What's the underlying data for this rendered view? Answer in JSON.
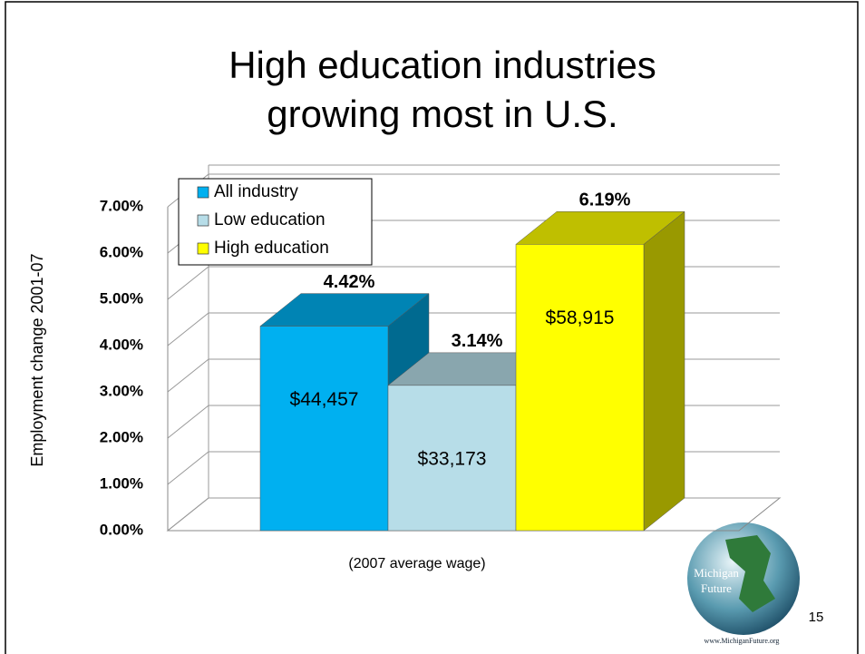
{
  "chart_data": {
    "type": "bar3d",
    "title": [
      "High education industries",
      "growing most in U.S."
    ],
    "y_label": "Employment change 2001-07",
    "x_label": "(2007 average wage)",
    "categories": [
      null
    ],
    "series": [
      {
        "name": "All industry",
        "color": "#00b0f0",
        "values": [
          4.42
        ],
        "value_labels": [
          "4.42%"
        ],
        "wage_labels": [
          "$44,457"
        ]
      },
      {
        "name": "Low education",
        "color": "#b7dde8",
        "values": [
          3.14
        ],
        "value_labels": [
          "3.14%"
        ],
        "wage_labels": [
          "$33,173"
        ]
      },
      {
        "name": "High education",
        "color": "#ffff00",
        "values": [
          6.19
        ],
        "value_labels": [
          "6.19%"
        ],
        "wage_labels": [
          "$58,915"
        ]
      }
    ],
    "ylim": [
      0,
      7
    ],
    "yticks": [
      {
        "value": 0,
        "label": "0.00%"
      },
      {
        "value": 1,
        "label": "1.00%"
      },
      {
        "value": 2,
        "label": "2.00%"
      },
      {
        "value": 3,
        "label": "3.00%"
      },
      {
        "value": 4,
        "label": "4.00%"
      },
      {
        "value": 5,
        "label": "5.00%"
      },
      {
        "value": 6,
        "label": "6.00%"
      },
      {
        "value": 7,
        "label": "7.00%"
      }
    ],
    "grid": true,
    "legend": "upper left"
  },
  "slide": {
    "logo_lines": [
      "Michigan",
      "Future"
    ],
    "url": "www.MichiganFuture.org",
    "page_number": "15"
  }
}
